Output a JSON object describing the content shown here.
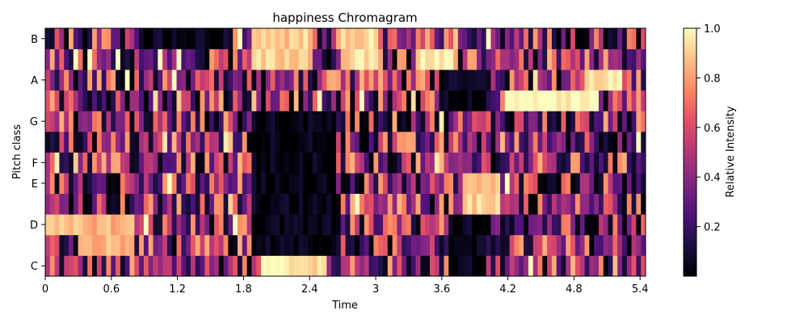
{
  "chart_data": {
    "type": "heatmap",
    "title": "happiness Chromagram",
    "xlabel": "Time",
    "ylabel": "Pitch class",
    "x_range": [
      0,
      5.45
    ],
    "x_ticks": [
      0,
      0.6,
      1.2,
      1.8,
      2.4,
      3,
      3.6,
      4.2,
      4.8,
      5.4
    ],
    "x_tick_labels": [
      "0",
      "0.6",
      "1.2",
      "1.8",
      "2.4",
      "3",
      "3.6",
      "4.2",
      "4.8",
      "5.4"
    ],
    "y_tick_labels": [
      "C",
      "D",
      "E",
      "F",
      "G",
      "A",
      "B"
    ],
    "y_tick_rows": [
      0,
      2,
      4,
      5,
      7,
      9,
      11
    ],
    "pitch_rows": 12,
    "frames": 128,
    "colormap": "magma",
    "colorbar": {
      "label": "Relative Intensity",
      "range": [
        0,
        1
      ],
      "ticks": [
        0.2,
        0.4,
        0.6,
        0.8,
        1.0
      ],
      "tick_labels": [
        "0.2",
        "0.4",
        "0.6",
        "0.8",
        "1.0"
      ]
    },
    "regions": [
      {
        "t": [
          0.9,
          1.7
        ],
        "rows": [
          11,
          11
        ],
        "level": 0.05
      },
      {
        "t": [
          1.9,
          2.6
        ],
        "rows": [
          1,
          7
        ],
        "level": 0.03
      },
      {
        "t": [
          2.0,
          2.5
        ],
        "rows": [
          0,
          0
        ],
        "level": 0.95
      },
      {
        "t": [
          3.7,
          4.0
        ],
        "rows": [
          0,
          2
        ],
        "level": 0.03
      },
      {
        "t": [
          4.2,
          5.0
        ],
        "rows": [
          8,
          8
        ],
        "level": 1.0
      },
      {
        "t": [
          3.8,
          4.1
        ],
        "rows": [
          3,
          4
        ],
        "level": 0.9
      },
      {
        "t": [
          0.0,
          0.8
        ],
        "rows": [
          2,
          2
        ],
        "level": 0.85
      },
      {
        "t": [
          0.3,
          0.8
        ],
        "rows": [
          1,
          1
        ],
        "level": 0.85
      },
      {
        "t": [
          3.4,
          3.7
        ],
        "rows": [
          10,
          10
        ],
        "level": 0.95
      },
      {
        "t": [
          1.9,
          2.4
        ],
        "rows": [
          10,
          11
        ],
        "level": 0.9
      },
      {
        "t": [
          2.7,
          3.0
        ],
        "rows": [
          10,
          11
        ],
        "level": 0.92
      },
      {
        "t": [
          3.6,
          4.0
        ],
        "rows": [
          8,
          9
        ],
        "level": 0.04
      },
      {
        "t": [
          4.9,
          5.2
        ],
        "rows": [
          9,
          9
        ],
        "level": 0.95
      }
    ]
  }
}
